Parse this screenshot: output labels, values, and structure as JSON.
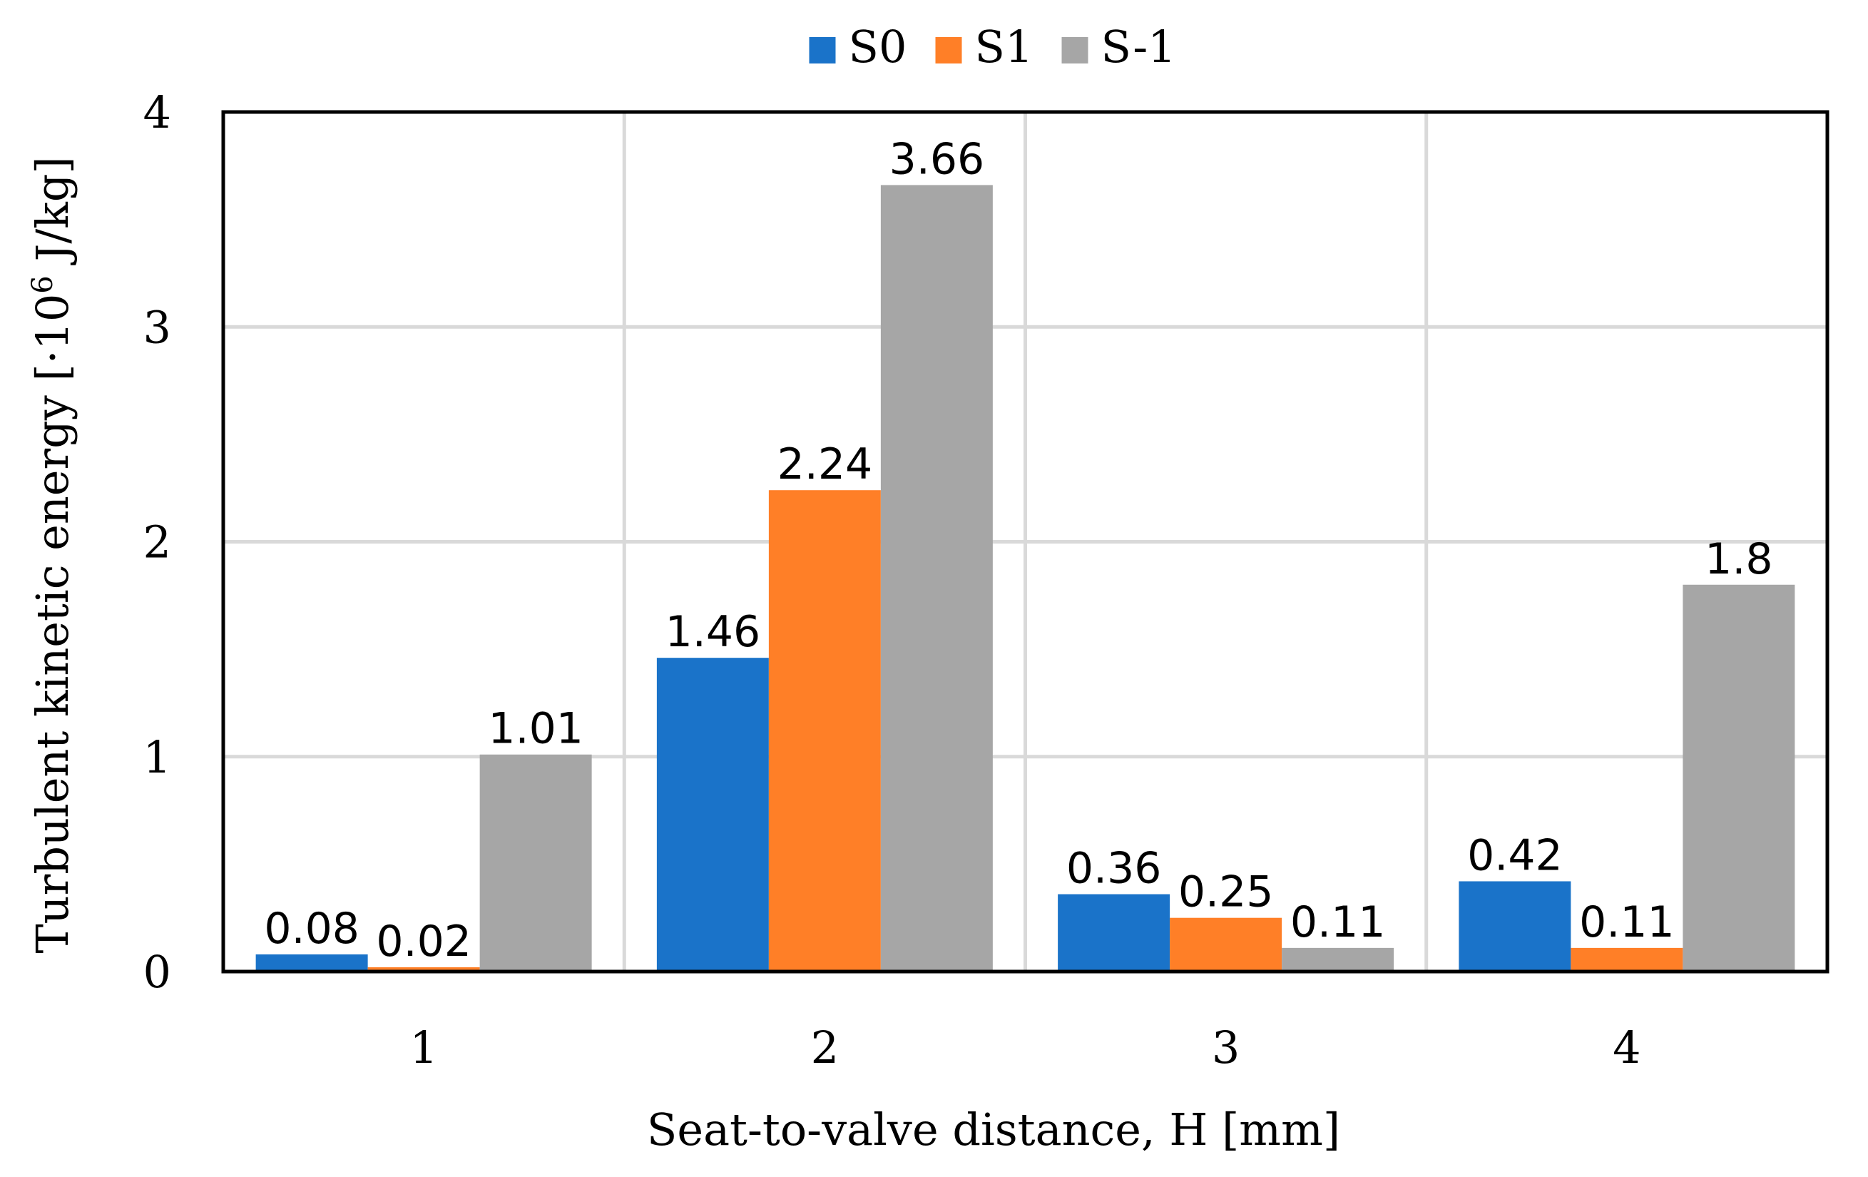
{
  "chart_data": {
    "type": "bar",
    "title": "",
    "xlabel": "Seat-to-valve distance, H [mm]",
    "ylabel": "Turbulent kinetic energy [·10",
    "ylabel_sup": "6",
    "ylabel_suffix": " J/kg]",
    "categories": [
      "1",
      "2",
      "3",
      "4"
    ],
    "ylim": [
      0,
      4
    ],
    "yticks": [
      "0",
      "1",
      "2",
      "3",
      "4"
    ],
    "grid": true,
    "legend_position": "top-center",
    "series": [
      {
        "name": "S0",
        "color": "#1a73c9",
        "values": [
          0.08,
          1.46,
          0.36,
          0.42
        ],
        "labels": [
          "0.08",
          "1.46",
          "0.36",
          "0.42"
        ]
      },
      {
        "name": "S1",
        "color": "#ff7f27",
        "values": [
          0.02,
          2.24,
          0.25,
          0.11
        ],
        "labels": [
          "0.02",
          "2.24",
          "0.25",
          "0.11"
        ]
      },
      {
        "name": "S-1",
        "color": "#a6a6a6",
        "values": [
          1.01,
          3.66,
          0.11,
          1.8
        ],
        "labels": [
          "1.01",
          "3.66",
          "0.11",
          "1.8"
        ]
      }
    ]
  }
}
